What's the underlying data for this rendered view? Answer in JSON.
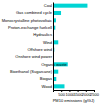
{
  "chart_data": {
    "type": "bar",
    "orientation": "horizontal",
    "categories": [
      "Coal",
      "Gas combined cycle",
      "Monocrystalline photovoltaic",
      "Proton-exchange fuelcell",
      "Hydraulics",
      "Wind",
      "Offshore wind",
      "Onshore wind power",
      null,
      "Bioethanol (Sugarcane)",
      "Biogas",
      "Wood"
    ],
    "values": [
      2100,
      490,
      180,
      140,
      60,
      320,
      80,
      60,
      900,
      320,
      200,
      700
    ],
    "color": "#00d4d4",
    "xlabel": "PM10 emissions (g/GJ)",
    "xlim": [
      0,
      2500
    ],
    "xticks": [
      500,
      1000,
      1500,
      2000,
      2500
    ],
    "annotations": [
      {
        "text": "Organic waste"
      }
    ]
  }
}
